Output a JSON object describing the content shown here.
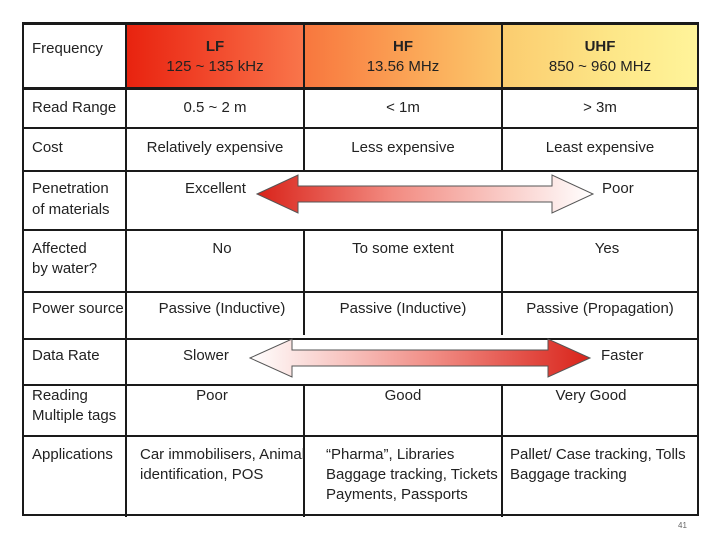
{
  "slide": {
    "page_number": "41"
  },
  "table": {
    "row_labels": {
      "frequency": "Frequency",
      "read_range": "Read Range",
      "cost": "Cost",
      "penetration_1": "Penetration",
      "penetration_2": "of materials",
      "water_1": "Affected",
      "water_2": "by water?",
      "power": "Power source",
      "data_rate": "Data Rate",
      "multi_1": "Reading",
      "multi_2": "Multiple tags",
      "applications": "Applications"
    },
    "columns": {
      "lf": {
        "title": "LF",
        "range": "125 ~ 135 kHz"
      },
      "hf": {
        "title": "HF",
        "range": "13.56 MHz"
      },
      "uhf": {
        "title": "UHF",
        "range": "850 ~ 960 MHz"
      }
    },
    "read_range": {
      "lf": "0.5 ~ 2 m",
      "hf": "< 1m",
      "uhf": "> 3m"
    },
    "cost": {
      "lf": "Relatively expensive",
      "hf": "Less expensive",
      "uhf": "Least expensive"
    },
    "penetration": {
      "left": "Excellent",
      "right": "Poor"
    },
    "water": {
      "lf": "No",
      "hf": "To some extent",
      "uhf": "Yes"
    },
    "power": {
      "lf": "Passive (Inductive)",
      "hf": "Passive (Inductive)",
      "uhf": "Passive (Propagation)"
    },
    "data_rate": {
      "left": "Slower",
      "right": "Faster"
    },
    "multi": {
      "lf": "Poor",
      "hf": "Good",
      "uhf": "Very Good"
    },
    "applications": {
      "lf_1": "Car immobilisers, Animal",
      "lf_2": "identification, POS",
      "hf_1": "“Pharma”, Libraries",
      "hf_2": "Baggage tracking, Tickets",
      "hf_3": "Payments, Passports",
      "uhf_1": "Pallet/ Case tracking, Tolls",
      "uhf_2": "Baggage tracking"
    }
  },
  "colors": {
    "arrow_red": "#d9231a",
    "arrow_white": "#ffffff",
    "header_lf": "#e8230f",
    "header_hf": "#fba556",
    "header_uhf": "#fff49a"
  }
}
